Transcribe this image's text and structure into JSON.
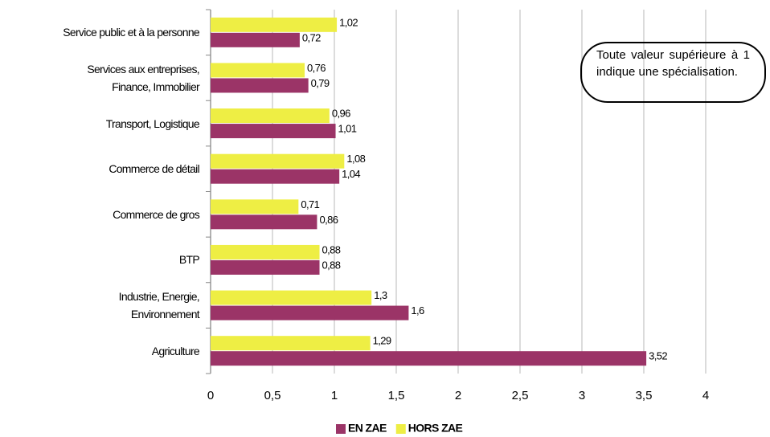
{
  "chart_data": {
    "type": "barh",
    "annotation": "Toute valeur supérieure à 1 indique une spécialisation.",
    "categories": [
      "Service public et à la personne",
      "Services aux entreprises,\nFinance, Immobilier",
      "Transport, Logistique",
      "Commerce de détail",
      "Commerce de gros",
      "BTP",
      "Industrie, Energie,\nEnvironnement",
      "Agriculture"
    ],
    "series": [
      {
        "name": "EN ZAE",
        "color": "#9b3467",
        "values": [
          0.72,
          0.79,
          1.01,
          1.04,
          0.86,
          0.88,
          1.6,
          3.52
        ],
        "value_labels": [
          "0,72",
          "0,79",
          "1,01",
          "1,04",
          "0,86",
          "0,88",
          "1,6",
          "3,52"
        ]
      },
      {
        "name": "HORS ZAE",
        "color": "#eeee44",
        "values": [
          1.02,
          0.76,
          0.96,
          1.08,
          0.71,
          0.88,
          1.3,
          1.29
        ],
        "value_labels": [
          "1,02",
          "0,76",
          "0,96",
          "1,08",
          "0,71",
          "0,88",
          "1,3",
          "1,29"
        ]
      }
    ],
    "xlim": [
      0,
      4
    ],
    "xticks": [
      0,
      {
        "value": 0.5,
        "label": "0,5"
      },
      1,
      {
        "value": 1.5,
        "label": "1,5"
      },
      2,
      {
        "value": 2.5,
        "label": "2,5"
      },
      3,
      {
        "value": 3.5,
        "label": "3,5"
      },
      4
    ],
    "grid": true
  }
}
